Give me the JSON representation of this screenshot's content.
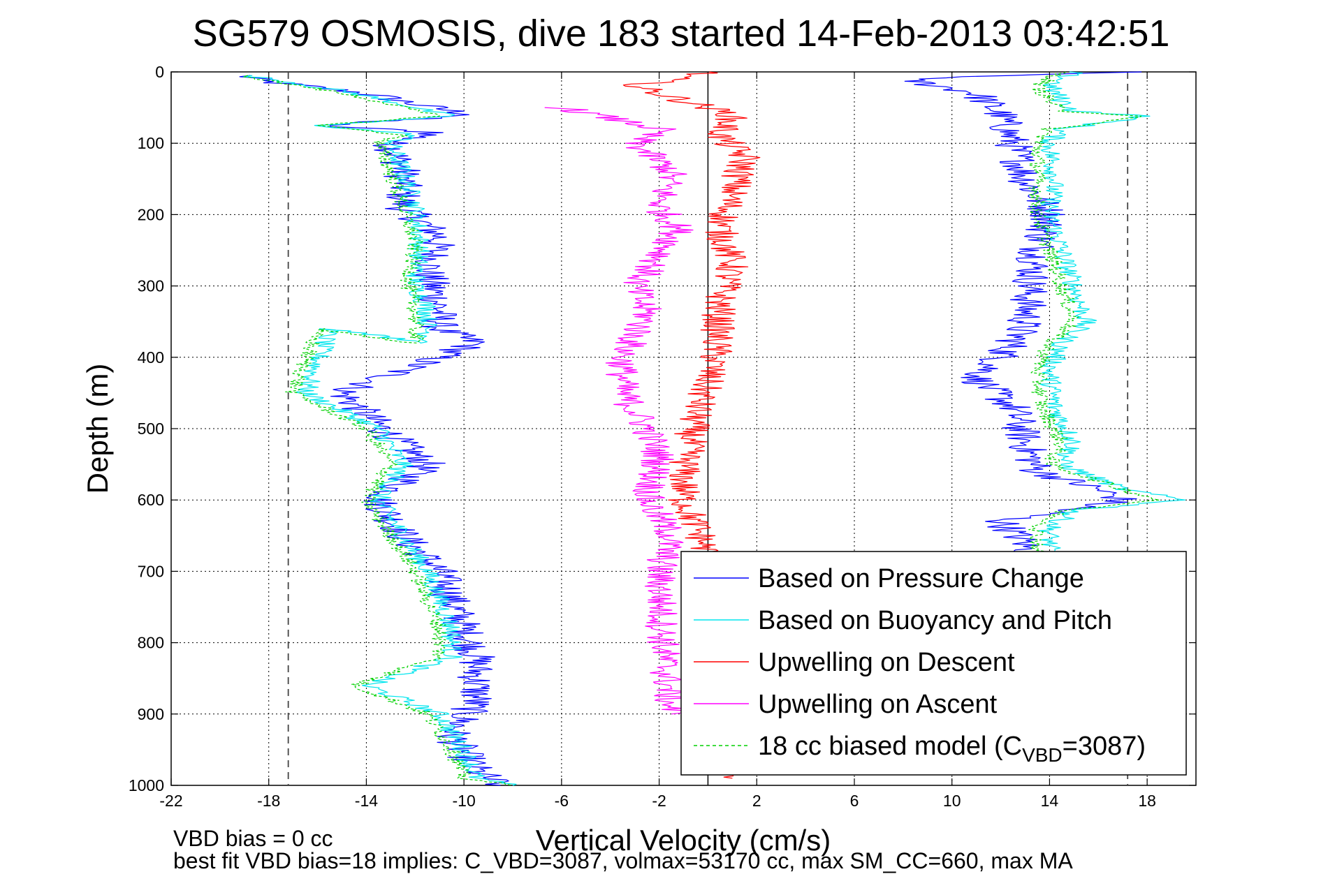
{
  "chart_data": {
    "type": "line",
    "title": "SG579 OSMOSIS, dive 183 started 14-Feb-2013 03:42:51",
    "xlabel": "Vertical Velocity (cm/s)",
    "ylabel": "Depth (m)",
    "xlim": [
      -22,
      20
    ],
    "ylim": [
      0,
      1000
    ],
    "y_reversed": true,
    "grid": true,
    "xticks": [
      "-22",
      "-18",
      "-14",
      "-10",
      "-6",
      "-2",
      "2",
      "6",
      "10",
      "14",
      "18"
    ],
    "yticks": [
      "0",
      "100",
      "200",
      "300",
      "400",
      "500",
      "600",
      "700",
      "800",
      "900",
      "1000"
    ],
    "reference_lines": {
      "zero": 0,
      "dashed": [
        -17.2,
        17.2
      ]
    },
    "legend_position": "bottom-right",
    "series": [
      {
        "name": "Based on Pressure Change",
        "color": "#0000ff",
        "style": "solid",
        "profiles": [
          {
            "x": [
              -19,
              -18.5,
              -14,
              -12,
              -10.5,
              -9.5,
              -16,
              -11,
              -13,
              -12.5,
              -12.5,
              -11,
              -11.5,
              -11,
              -11,
              -9.5,
              -15,
              -13,
              -11.5,
              -13.5,
              -12.5,
              -11,
              -10,
              -9.5,
              -9.5,
              -9.5,
              -10.5,
              -9.5,
              -8.5
            ],
            "y": [
              5,
              12,
              30,
              45,
              55,
              60,
              75,
              85,
              100,
              140,
              190,
              230,
              280,
              330,
              360,
              380,
              450,
              510,
              550,
              600,
              650,
              700,
              780,
              820,
              850,
              880,
              930,
              980,
              1000
            ]
          },
          {
            "x": [
              17,
              8,
              11,
              12,
              12.5,
              13,
              14,
              13.5,
              13.2,
              13,
              12.5,
              12,
              11,
              12.5,
              13,
              13.5,
              16,
              17,
              12,
              13,
              13,
              14
            ],
            "y": [
              0,
              10,
              30,
              60,
              100,
              150,
              200,
              250,
              300,
              350,
              380,
              400,
              430,
              470,
              520,
              560,
              585,
              600,
              630,
              660,
              670,
              680
            ]
          }
        ]
      },
      {
        "name": "Based on Buoyancy and Pitch",
        "color": "#00e5ee",
        "style": "solid",
        "profiles": [
          {
            "x": [
              -19,
              -17.5,
              -14.5,
              -12.5,
              -11.5,
              -10.5,
              -16,
              -12,
              -13,
              -12.5,
              -12,
              -11.8,
              -12,
              -11.5,
              -11.5,
              -15.5,
              -16.5,
              -13.5,
              -12.5,
              -13.5,
              -12.5,
              -11.5,
              -10.5,
              -10.5,
              -14,
              -11,
              -10,
              -9.5,
              -8
            ],
            "y": [
              5,
              12,
              30,
              45,
              55,
              62,
              75,
              88,
              100,
              140,
              190,
              240,
              300,
              330,
              380,
              360,
              450,
              500,
              550,
              600,
              650,
              700,
              780,
              820,
              860,
              900,
              950,
              990,
              1000
            ]
          },
          {
            "x": [
              15,
              14,
              14.5,
              15,
              18,
              14.5,
              14,
              14.2,
              14,
              14.5,
              15,
              15.5,
              14.5,
              14,
              14.2,
              15,
              14.5,
              17,
              19.5,
              15,
              14,
              14
            ],
            "y": [
              0,
              20,
              40,
              55,
              62,
              80,
              100,
              150,
              200,
              250,
              300,
              350,
              380,
              420,
              470,
              520,
              550,
              585,
              600,
              615,
              640,
              680
            ]
          }
        ]
      },
      {
        "name": "Upwelling on Descent",
        "color": "#ff0000",
        "style": "solid",
        "profiles": [
          {
            "x": [
              0,
              -3,
              -1,
              1,
              0.5,
              1.5,
              1,
              0.5,
              1,
              0.5,
              0.3,
              -0.5,
              -1,
              -1,
              -0.3,
              0.2,
              0.8,
              1
            ],
            "y": [
              0,
              20,
              40,
              60,
              90,
              120,
              170,
              220,
              270,
              320,
              400,
              480,
              560,
              600,
              650,
              700,
              900,
              990
            ]
          }
        ]
      },
      {
        "name": "Upwelling on Ascent",
        "color": "#ff00ff",
        "style": "solid",
        "profiles": [
          {
            "x": [
              -6,
              -2,
              -3,
              -1.5,
              -2,
              -1.2,
              -2,
              -3,
              -2.5,
              -3.5,
              -3.5,
              -2.5,
              -2,
              -2.5,
              -1.5,
              -2,
              -1.8,
              -1.5
            ],
            "y": [
              50,
              80,
              100,
              140,
              190,
              220,
              260,
              300,
              340,
              400,
              450,
              500,
              540,
              600,
              650,
              700,
              820,
              900
            ]
          }
        ]
      },
      {
        "name": "18 cc biased model (C_VBD=3087)",
        "color": "#00d000",
        "style": "dashed",
        "profiles": [
          {
            "x": [
              -19,
              -18,
              -15,
              -13,
              -12,
              -11,
              -16,
              -12.5,
              -13.5,
              -13,
              -12.5,
              -12,
              -12.3,
              -12,
              -12,
              -16,
              -17,
              -14,
              -13,
              -14,
              -13,
              -12,
              -11,
              -11,
              -14.5,
              -11.5,
              -10.5,
              -10,
              -8
            ],
            "y": [
              5,
              12,
              30,
              45,
              55,
              62,
              75,
              88,
              100,
              140,
              190,
              240,
              300,
              330,
              380,
              360,
              450,
              500,
              550,
              600,
              650,
              700,
              780,
              820,
              860,
              900,
              950,
              990,
              1000
            ]
          },
          {
            "x": [
              14.5,
              13.5,
              14,
              14.5,
              18,
              14,
              13.5,
              13.5,
              13.5,
              14,
              14.5,
              15,
              14,
              13.5,
              13.7,
              14.5,
              14,
              17,
              18.5,
              14.5,
              13.5,
              13.5
            ],
            "y": [
              0,
              20,
              40,
              55,
              62,
              80,
              100,
              150,
              200,
              250,
              300,
              350,
              380,
              420,
              470,
              520,
              550,
              585,
              600,
              615,
              640,
              680
            ]
          }
        ]
      }
    ],
    "legend": [
      {
        "label": "Based on Pressure Change",
        "color": "#0000ff",
        "style": "solid"
      },
      {
        "label": "Based on Buoyancy and Pitch",
        "color": "#00e5ee",
        "style": "solid"
      },
      {
        "label": "Upwelling on Descent",
        "color": "#ff0000",
        "style": "solid"
      },
      {
        "label": "Upwelling on Ascent",
        "color": "#ff00ff",
        "style": "solid"
      },
      {
        "label": "18 cc biased model (C_VBD=3087)",
        "label_prefix": "18 cc biased model (C",
        "label_sub": "VBD",
        "label_suffix": "=3087)",
        "color": "#00d000",
        "style": "dashed"
      }
    ]
  },
  "footer": {
    "line1": "VBD bias = 0 cc",
    "line2": "best fit VBD bias=18 implies: C_VBD=3087, volmax=53170 cc, max SM_CC=660, max MA"
  }
}
